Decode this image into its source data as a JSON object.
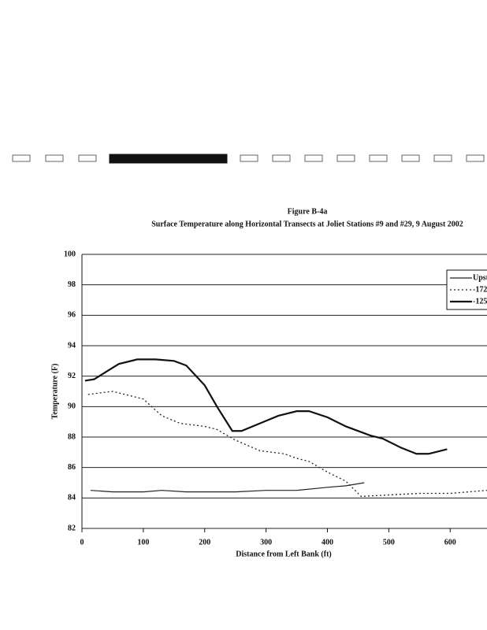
{
  "chart_data": {
    "type": "line",
    "title": "Figure B-4a",
    "subtitle": "Surface Temperature along Horizontal Transects at Joliet Stations #9 and #29, 9 August 2002",
    "y_label": "Temperature (F)",
    "x_label": "Distance from Left Bank (ft)",
    "xlim": [
      0,
      660
    ],
    "ylim": [
      82,
      100
    ],
    "xticks": [
      0,
      100,
      200,
      300,
      400,
      500,
      600
    ],
    "yticks": [
      82,
      84,
      86,
      88,
      90,
      92,
      94,
      96,
      98,
      100
    ],
    "grid": true,
    "legend": "top-right",
    "series": [
      {
        "name": "Upst",
        "color": "#222222",
        "style": "solid",
        "width": 1.2,
        "x": [
          14,
          50,
          100,
          130,
          170,
          200,
          250,
          300,
          350,
          400,
          430,
          460
        ],
        "values": [
          84.5,
          84.4,
          84.4,
          84.5,
          84.4,
          84.4,
          84.4,
          84.5,
          84.5,
          84.7,
          84.8,
          85.0
        ]
      },
      {
        "name": "-172",
        "color": "#222222",
        "style": "dotted",
        "width": 1.3,
        "x": [
          10,
          50,
          100,
          130,
          160,
          200,
          220,
          250,
          290,
          330,
          350,
          370,
          400,
          430,
          455,
          500,
          550,
          600,
          660
        ],
        "values": [
          90.8,
          91.0,
          90.5,
          89.4,
          88.9,
          88.7,
          88.5,
          87.8,
          87.1,
          86.9,
          86.6,
          86.4,
          85.7,
          85.1,
          84.1,
          84.2,
          84.3,
          84.3,
          84.5
        ]
      },
      {
        "name": "-125",
        "color": "#111111",
        "style": "solid",
        "width": 2.2,
        "x": [
          5,
          20,
          40,
          60,
          90,
          120,
          150,
          170,
          200,
          220,
          245,
          260,
          290,
          320,
          350,
          370,
          400,
          430,
          470,
          490,
          520,
          545,
          565,
          595
        ],
        "values": [
          91.7,
          91.8,
          92.3,
          92.8,
          93.1,
          93.1,
          93.0,
          92.7,
          91.4,
          90.0,
          88.4,
          88.4,
          88.9,
          89.4,
          89.7,
          89.7,
          89.3,
          88.7,
          88.1,
          87.9,
          87.3,
          86.9,
          86.9,
          87.2
        ]
      }
    ]
  }
}
